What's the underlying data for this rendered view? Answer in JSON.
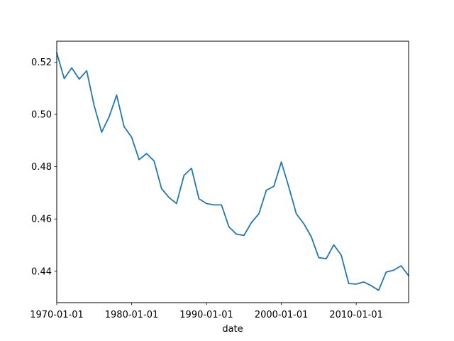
{
  "chart_data": {
    "type": "line",
    "title": "",
    "xlabel": "date",
    "ylabel": "",
    "grid": false,
    "legend": "none",
    "xlim": [
      "1970-01-01",
      "2017-01-01"
    ],
    "ylim": [
      0.428,
      0.528
    ],
    "xticks": [
      "1970-01-01",
      "1980-01-01",
      "1990-01-01",
      "2000-01-01",
      "2010-01-01"
    ],
    "yticks": [
      0.44,
      0.46,
      0.48,
      0.5,
      0.52
    ],
    "ytick_labels": [
      "0.44",
      "0.46",
      "0.48",
      "0.50",
      "0.52"
    ],
    "series_color": "#1f77b4",
    "series": [
      {
        "x": [
          "1970-01-01",
          "1971-01-01",
          "1972-01-01",
          "1973-01-01",
          "1974-01-01",
          "1975-01-01",
          "1976-01-01",
          "1977-01-01",
          "1978-01-01",
          "1979-01-01",
          "1980-01-01",
          "1981-01-01",
          "1982-01-01",
          "1983-01-01",
          "1984-01-01",
          "1985-01-01",
          "1986-01-01",
          "1987-01-01",
          "1988-01-01",
          "1989-01-01",
          "1990-01-01",
          "1991-01-01",
          "1992-01-01",
          "1993-01-01",
          "1994-01-01",
          "1995-01-01",
          "1996-01-01",
          "1997-01-01",
          "1998-01-01",
          "1999-01-01",
          "2000-01-01",
          "2001-01-01",
          "2002-01-01",
          "2003-01-01",
          "2004-01-01",
          "2005-01-01",
          "2006-01-01",
          "2007-01-01",
          "2008-01-01",
          "2009-01-01",
          "2010-01-01",
          "2011-01-01",
          "2012-01-01",
          "2013-01-01",
          "2014-01-01",
          "2015-01-01",
          "2016-01-01",
          "2017-01-01"
        ],
        "values": [
          0.5235,
          0.5137,
          0.5178,
          0.5135,
          0.5167,
          0.5033,
          0.4932,
          0.4991,
          0.5074,
          0.4953,
          0.4913,
          0.4827,
          0.485,
          0.4822,
          0.4716,
          0.4682,
          0.4659,
          0.4767,
          0.4794,
          0.4677,
          0.4659,
          0.4654,
          0.4654,
          0.457,
          0.4542,
          0.4537,
          0.4586,
          0.462,
          0.471,
          0.4725,
          0.4818,
          0.4722,
          0.462,
          0.4582,
          0.4532,
          0.4452,
          0.4448,
          0.4501,
          0.4462,
          0.4353,
          0.4351,
          0.4359,
          0.4345,
          0.4327,
          0.4397,
          0.4404,
          0.4421,
          0.4383
        ]
      }
    ]
  }
}
